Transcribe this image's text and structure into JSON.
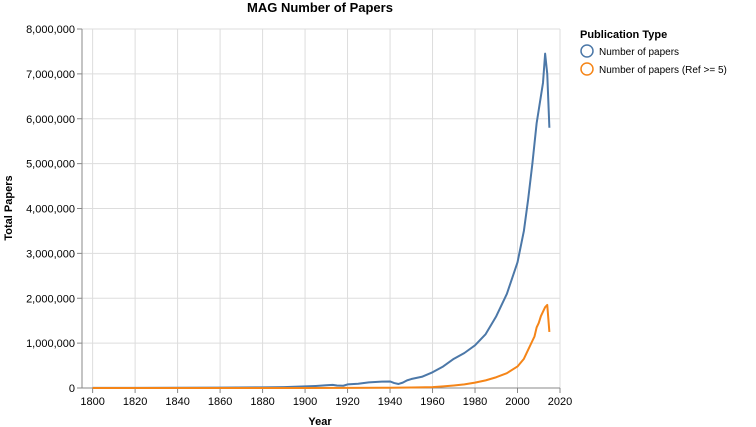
{
  "chart_data": {
    "type": "line",
    "title": "MAG Number of Papers",
    "xlabel": "Year",
    "ylabel": "Total Papers",
    "xlim": [
      1795,
      2020
    ],
    "ylim": [
      0,
      8000000
    ],
    "x_ticks": [
      1800,
      1820,
      1840,
      1860,
      1880,
      1900,
      1920,
      1940,
      1960,
      1980,
      2000,
      2020
    ],
    "x_tick_labels": [
      "1800",
      "1820",
      "1840",
      "1860",
      "1880",
      "1900",
      "1920",
      "1940",
      "1960",
      "1980",
      "2000",
      "2020"
    ],
    "y_ticks": [
      0,
      1000000,
      2000000,
      3000000,
      4000000,
      5000000,
      6000000,
      7000000,
      8000000
    ],
    "y_tick_labels": [
      "0",
      "1,000,000",
      "2,000,000",
      "3,000,000",
      "4,000,000",
      "5,000,000",
      "6,000,000",
      "7,000,000",
      "8,000,000"
    ],
    "grid": true,
    "legend": {
      "title": "Publication Type",
      "position": "right"
    },
    "series": [
      {
        "name": "Number of papers",
        "color": "#4c78a8",
        "points": [
          [
            1800,
            2000
          ],
          [
            1820,
            3000
          ],
          [
            1840,
            5000
          ],
          [
            1860,
            8000
          ],
          [
            1880,
            15000
          ],
          [
            1890,
            20000
          ],
          [
            1900,
            35000
          ],
          [
            1905,
            45000
          ],
          [
            1910,
            60000
          ],
          [
            1913,
            70000
          ],
          [
            1915,
            55000
          ],
          [
            1918,
            50000
          ],
          [
            1920,
            80000
          ],
          [
            1925,
            95000
          ],
          [
            1930,
            125000
          ],
          [
            1935,
            140000
          ],
          [
            1940,
            145000
          ],
          [
            1942,
            110000
          ],
          [
            1944,
            90000
          ],
          [
            1946,
            120000
          ],
          [
            1948,
            170000
          ],
          [
            1950,
            200000
          ],
          [
            1955,
            250000
          ],
          [
            1960,
            350000
          ],
          [
            1965,
            480000
          ],
          [
            1970,
            650000
          ],
          [
            1975,
            780000
          ],
          [
            1980,
            950000
          ],
          [
            1985,
            1200000
          ],
          [
            1990,
            1600000
          ],
          [
            1995,
            2100000
          ],
          [
            2000,
            2800000
          ],
          [
            2003,
            3500000
          ],
          [
            2005,
            4200000
          ],
          [
            2007,
            5000000
          ],
          [
            2009,
            5900000
          ],
          [
            2010,
            6200000
          ],
          [
            2011,
            6500000
          ],
          [
            2012,
            6800000
          ],
          [
            2013,
            7450000
          ],
          [
            2014,
            7000000
          ],
          [
            2015,
            5800000
          ]
        ]
      },
      {
        "name": "Number of papers (Ref >= 5)",
        "color": "#f58518",
        "points": [
          [
            1800,
            0
          ],
          [
            1850,
            0
          ],
          [
            1900,
            0
          ],
          [
            1920,
            2000
          ],
          [
            1940,
            5000
          ],
          [
            1950,
            10000
          ],
          [
            1960,
            20000
          ],
          [
            1965,
            35000
          ],
          [
            1970,
            55000
          ],
          [
            1975,
            80000
          ],
          [
            1980,
            120000
          ],
          [
            1985,
            170000
          ],
          [
            1990,
            240000
          ],
          [
            1995,
            330000
          ],
          [
            2000,
            480000
          ],
          [
            2003,
            650000
          ],
          [
            2005,
            850000
          ],
          [
            2007,
            1050000
          ],
          [
            2008,
            1150000
          ],
          [
            2009,
            1350000
          ],
          [
            2010,
            1450000
          ],
          [
            2011,
            1600000
          ],
          [
            2012,
            1700000
          ],
          [
            2013,
            1800000
          ],
          [
            2014,
            1850000
          ],
          [
            2015,
            1250000
          ]
        ]
      }
    ]
  }
}
